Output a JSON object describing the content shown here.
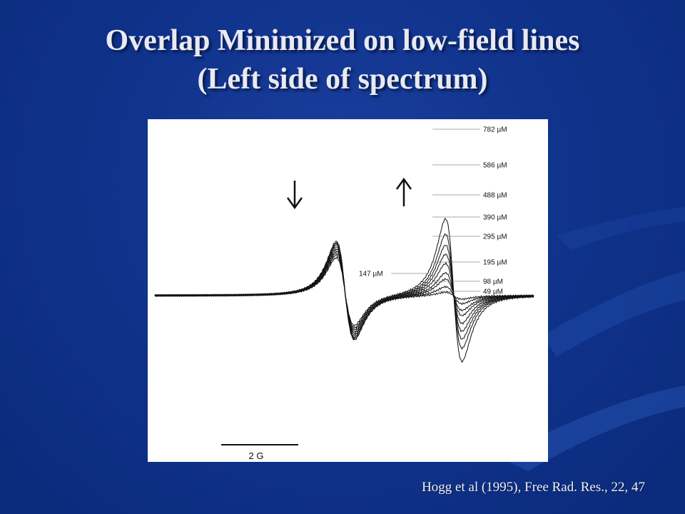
{
  "slide": {
    "title_line1": "Overlap Minimized on low-field lines",
    "title_line2": "(Left side of spectrum)",
    "citation": "Hogg et al (1995), Free Rad. Res., 22, 47"
  },
  "colors": {
    "background": "#10338c",
    "title_text": "#e9e9f1",
    "plot_background": "#ffffff",
    "trace": "#111111"
  },
  "chart_data": {
    "type": "line",
    "description_units": "EPR spectrum traces (derivative signal vs magnetic field)",
    "series": [
      {
        "name": "782 µM",
        "left_line_amplitude": 0.69,
        "right_line_amplitude": 1.0
      },
      {
        "name": "586 µM",
        "left_line_amplitude": 0.74,
        "right_line_amplitude": 0.8
      },
      {
        "name": "488 µM",
        "left_line_amplitude": 0.78,
        "right_line_amplitude": 0.66
      },
      {
        "name": "390 µM",
        "left_line_amplitude": 0.82,
        "right_line_amplitude": 0.54
      },
      {
        "name": "295 µM",
        "left_line_amplitude": 0.86,
        "right_line_amplitude": 0.42
      },
      {
        "name": "195 µM",
        "left_line_amplitude": 0.9,
        "right_line_amplitude": 0.3
      },
      {
        "name": "147 µM",
        "left_line_amplitude": 0.94,
        "right_line_amplitude": 0.22
      },
      {
        "name": "98 µM",
        "left_line_amplitude": 0.97,
        "right_line_amplitude": 0.12
      },
      {
        "name": "49 µM",
        "left_line_amplitude": 1.0,
        "right_line_amplitude": 0.05
      }
    ],
    "arrows": {
      "left_line": "down",
      "right_line": "up"
    },
    "scale_bar_label": "2 G"
  }
}
